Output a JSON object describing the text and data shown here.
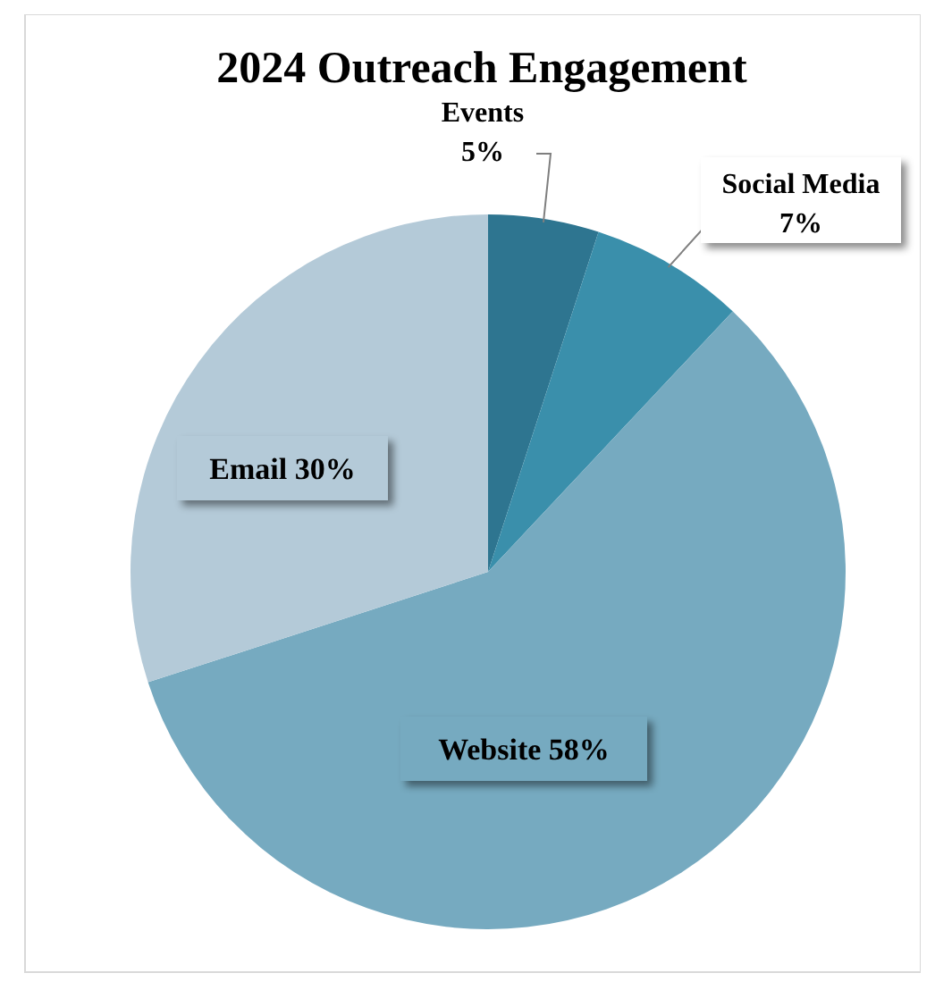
{
  "chart_data": {
    "type": "pie",
    "title": "2024 Outreach Engagement",
    "categories": [
      "Events",
      "Social Media",
      "Website",
      "Email"
    ],
    "values": [
      5,
      7,
      58,
      30
    ],
    "value_labels": [
      "5%",
      "7%",
      "58%",
      "30%"
    ],
    "colors": [
      "#2e7590",
      "#3a8fab",
      "#76aac0",
      "#b4cad8"
    ]
  }
}
